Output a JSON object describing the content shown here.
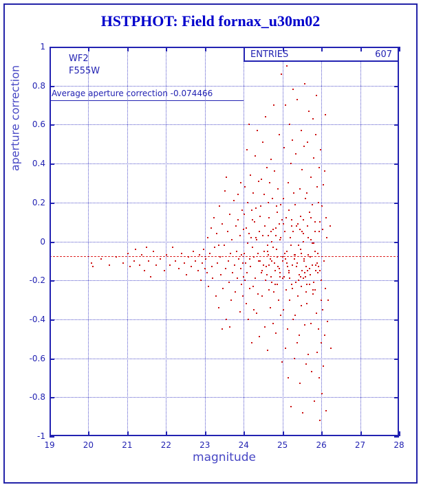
{
  "chart_data": {
    "type": "scatter",
    "title": "HSTPHOT: Field fornax_u30m02",
    "xlabel": "magnitude",
    "ylabel": "aperture correction",
    "xlim": [
      19,
      28
    ],
    "ylim": [
      -1,
      1
    ],
    "grid": true,
    "x_ticks": [
      19,
      20,
      21,
      22,
      23,
      24,
      25,
      26,
      27,
      28
    ],
    "x_tick_labels": [
      "19",
      "20",
      "21",
      "22",
      "23",
      "24",
      "25",
      "26",
      "27",
      "28"
    ],
    "y_ticks": [
      1,
      0.8,
      0.6,
      0.4,
      0.2,
      0,
      -0.2,
      -0.4,
      -0.6,
      -0.8,
      -1
    ],
    "y_tick_labels": [
      "1",
      "0.8",
      "0.6",
      "0.4",
      "0.2",
      "0",
      "-0.2",
      "-0.4",
      "-0.6",
      "-0.8",
      "-1"
    ],
    "stats": {
      "entries_label": "ENTRIES",
      "entries_value": "607"
    },
    "camera_label": "WF2",
    "filter_label": "F555W",
    "average_label": "Average aperture correction -0.074466",
    "average_value": -0.074466,
    "marker_color": "#cc1111",
    "frame_color": "#2222b2",
    "points": [
      [
        20.08,
        -0.11
      ],
      [
        20.12,
        -0.13
      ],
      [
        20.32,
        -0.09
      ],
      [
        20.55,
        -0.12
      ],
      [
        20.72,
        -0.08
      ],
      [
        20.9,
        -0.11
      ],
      [
        21.02,
        -0.06
      ],
      [
        21.08,
        -0.13
      ],
      [
        21.18,
        -0.1
      ],
      [
        21.22,
        -0.04
      ],
      [
        21.32,
        -0.12
      ],
      [
        21.38,
        -0.07
      ],
      [
        21.44,
        -0.15
      ],
      [
        21.5,
        -0.03
      ],
      [
        21.55,
        -0.1
      ],
      [
        21.6,
        -0.18
      ],
      [
        21.68,
        -0.05
      ],
      [
        21.75,
        -0.12
      ],
      [
        21.85,
        -0.09
      ],
      [
        21.95,
        -0.15
      ],
      [
        22.02,
        -0.07
      ],
      [
        22.1,
        -0.12
      ],
      [
        22.18,
        -0.03
      ],
      [
        22.25,
        -0.1
      ],
      [
        22.33,
        -0.14
      ],
      [
        22.4,
        -0.06
      ],
      [
        22.48,
        -0.11
      ],
      [
        22.52,
        -0.17
      ],
      [
        22.58,
        -0.08
      ],
      [
        22.65,
        -0.13
      ],
      [
        22.7,
        -0.05
      ],
      [
        22.75,
        -0.1
      ],
      [
        22.82,
        -0.15
      ],
      [
        22.87,
        -0.07
      ],
      [
        22.9,
        -0.2
      ],
      [
        22.94,
        -0.11
      ],
      [
        22.97,
        -0.04
      ],
      [
        23.0,
        -0.14
      ],
      [
        23.02,
        -0.09
      ],
      [
        23.05,
        -0.16
      ],
      [
        23.08,
        0.02
      ],
      [
        23.1,
        -0.23
      ],
      [
        23.13,
        -0.06
      ],
      [
        23.16,
        0.07
      ],
      [
        23.18,
        -0.13
      ],
      [
        23.2,
        -0.19
      ],
      [
        23.23,
        0.12
      ],
      [
        23.26,
        -0.03
      ],
      [
        23.28,
        -0.28
      ],
      [
        23.3,
        0.04
      ],
      [
        23.33,
        -0.11
      ],
      [
        23.36,
        -0.34
      ],
      [
        23.38,
        0.18
      ],
      [
        23.4,
        -0.08
      ],
      [
        23.42,
        -0.17
      ],
      [
        23.45,
        0.09
      ],
      [
        23.47,
        -0.24
      ],
      [
        23.5,
        -0.02
      ],
      [
        23.52,
        0.26
      ],
      [
        23.54,
        -0.14
      ],
      [
        23.56,
        -0.4
      ],
      [
        23.58,
        0.05
      ],
      [
        23.6,
        -0.1
      ],
      [
        23.62,
        -0.21
      ],
      [
        23.64,
        0.14
      ],
      [
        23.66,
        -0.06
      ],
      [
        23.68,
        -0.3
      ],
      [
        23.7,
        0.01
      ],
      [
        23.72,
        -0.16
      ],
      [
        23.74,
        0.21
      ],
      [
        23.76,
        -0.12
      ],
      [
        23.78,
        -0.26
      ],
      [
        23.8,
        0.08
      ],
      [
        23.82,
        -0.05
      ],
      [
        23.84,
        -0.19
      ],
      [
        23.86,
        0.11
      ],
      [
        23.88,
        -0.09
      ],
      [
        23.9,
        -0.36
      ],
      [
        23.91,
        0.03
      ],
      [
        23.92,
        -0.14
      ],
      [
        23.93,
        0.3
      ],
      [
        23.94,
        -0.22
      ],
      [
        23.95,
        -0.07
      ],
      [
        23.96,
        0.16
      ],
      [
        23.97,
        -0.11
      ],
      [
        23.98,
        -0.28
      ],
      [
        23.99,
        0.06
      ],
      [
        24.0,
        -0.18
      ],
      [
        23.44,
        -0.45
      ],
      [
        23.55,
        0.33
      ],
      [
        23.35,
        -0.02
      ],
      [
        23.65,
        -0.44
      ],
      [
        23.85,
        0.24
      ],
      [
        24.01,
        -0.06
      ],
      [
        24.02,
        0.14
      ],
      [
        24.03,
        -0.2
      ],
      [
        24.04,
        0.28
      ],
      [
        24.05,
        -0.11
      ],
      [
        24.06,
        -0.32
      ],
      [
        24.07,
        0.07
      ],
      [
        24.08,
        0.47
      ],
      [
        24.09,
        -0.16
      ],
      [
        24.1,
        -0.01
      ],
      [
        24.11,
        0.2
      ],
      [
        24.12,
        -0.4
      ],
      [
        24.13,
        0.04
      ],
      [
        24.14,
        0.6
      ],
      [
        24.15,
        -0.24
      ],
      [
        24.16,
        -0.09
      ],
      [
        24.17,
        0.34
      ],
      [
        24.18,
        -0.13
      ],
      [
        24.19,
        0.02
      ],
      [
        24.2,
        -0.52
      ],
      [
        24.21,
        0.16
      ],
      [
        24.22,
        -0.03
      ],
      [
        24.23,
        0.11
      ],
      [
        24.24,
        -0.23
      ],
      [
        24.25,
        0.25
      ],
      [
        24.26,
        -0.08
      ],
      [
        24.27,
        -0.35
      ],
      [
        24.28,
        0.1
      ],
      [
        24.29,
        0.44
      ],
      [
        24.3,
        -0.19
      ],
      [
        24.31,
        0.02
      ],
      [
        24.32,
        0.17
      ],
      [
        24.33,
        -0.37
      ],
      [
        24.34,
        0.01
      ],
      [
        24.35,
        0.57
      ],
      [
        24.36,
        -0.27
      ],
      [
        24.37,
        -0.06
      ],
      [
        24.38,
        0.31
      ],
      [
        24.39,
        -0.1
      ],
      [
        24.4,
        0.05
      ],
      [
        24.41,
        -0.49
      ],
      [
        24.42,
        0.13
      ],
      [
        24.43,
        -0.1
      ],
      [
        24.44,
        0.18
      ],
      [
        24.45,
        -0.16
      ],
      [
        24.46,
        0.32
      ],
      [
        24.47,
        -0.15
      ],
      [
        24.48,
        -0.28
      ],
      [
        24.49,
        0.03
      ],
      [
        24.5,
        0.51
      ],
      [
        24.51,
        -0.12
      ],
      [
        24.52,
        -0.05
      ],
      [
        24.53,
        0.24
      ],
      [
        24.54,
        -0.44
      ],
      [
        24.55,
        0.08
      ],
      [
        24.56,
        0.64
      ],
      [
        24.57,
        -0.2
      ],
      [
        24.58,
        -0.13
      ],
      [
        24.59,
        0.38
      ],
      [
        24.6,
        -0.17
      ],
      [
        24.61,
        -0.02
      ],
      [
        24.62,
        -0.56
      ],
      [
        24.63,
        0.2
      ],
      [
        24.64,
        -0.07
      ],
      [
        24.65,
        0.12
      ],
      [
        24.66,
        -0.25
      ],
      [
        24.67,
        0.3
      ],
      [
        24.68,
        -0.09
      ],
      [
        24.69,
        -0.34
      ],
      [
        24.7,
        0.05
      ],
      [
        24.71,
        0.42
      ],
      [
        24.72,
        -0.21
      ],
      [
        24.73,
        0.0
      ],
      [
        24.74,
        0.22
      ],
      [
        24.75,
        -0.42
      ],
      [
        24.76,
        0.06
      ],
      [
        24.77,
        0.7
      ],
      [
        24.78,
        -0.26
      ],
      [
        24.79,
        -0.11
      ],
      [
        24.8,
        0.36
      ],
      [
        24.81,
        -0.15
      ],
      [
        24.82,
        0.03
      ],
      [
        24.83,
        -0.47
      ],
      [
        24.84,
        0.18
      ],
      [
        24.85,
        -0.04
      ],
      [
        24.86,
        0.15
      ],
      [
        24.87,
        -0.22
      ],
      [
        24.88,
        0.27
      ],
      [
        24.89,
        -0.13
      ],
      [
        24.9,
        -0.3
      ],
      [
        24.91,
        0.09
      ],
      [
        24.92,
        0.55
      ],
      [
        24.93,
        -0.18
      ],
      [
        24.94,
        0.01
      ],
      [
        24.95,
        0.19
      ],
      [
        24.96,
        -0.38
      ],
      [
        24.97,
        0.86
      ],
      [
        24.98,
        -0.62
      ],
      [
        24.99,
        0.11
      ],
      [
        25.0,
        -0.08
      ],
      [
        25.01,
        -0.1
      ],
      [
        25.02,
        0.22
      ],
      [
        25.03,
        -0.35
      ],
      [
        25.04,
        0.48
      ],
      [
        25.05,
        -0.18
      ],
      [
        25.06,
        0.05
      ],
      [
        25.07,
        -0.55
      ],
      [
        25.08,
        0.7
      ],
      [
        25.09,
        -0.25
      ],
      [
        25.1,
        0.12
      ],
      [
        25.11,
        -0.05
      ],
      [
        25.12,
        0.9
      ],
      [
        25.13,
        -0.45
      ],
      [
        25.14,
        0.3
      ],
      [
        25.15,
        -0.7
      ],
      [
        25.16,
        0.16
      ],
      [
        25.17,
        -0.15
      ],
      [
        25.18,
        0.6
      ],
      [
        25.19,
        -0.3
      ],
      [
        25.2,
        0.02
      ],
      [
        25.21,
        0.4
      ],
      [
        25.22,
        -0.85
      ],
      [
        25.23,
        0.08
      ],
      [
        25.24,
        -0.22
      ],
      [
        25.25,
        0.52
      ],
      [
        25.26,
        -0.12
      ],
      [
        25.27,
        0.78
      ],
      [
        25.28,
        -0.4
      ],
      [
        25.29,
        0.25
      ],
      [
        25.3,
        -0.6
      ],
      [
        25.31,
        -0.07
      ],
      [
        25.32,
        0.19
      ],
      [
        25.33,
        -0.38
      ],
      [
        25.34,
        0.45
      ],
      [
        25.35,
        -0.21
      ],
      [
        25.36,
        0.08
      ],
      [
        25.37,
        -0.52
      ],
      [
        25.38,
        0.73
      ],
      [
        25.39,
        -0.28
      ],
      [
        25.4,
        0.09
      ],
      [
        25.41,
        -0.02
      ],
      [
        25.42,
        0.93
      ],
      [
        25.43,
        -0.48
      ],
      [
        25.44,
        0.27
      ],
      [
        25.45,
        -0.73
      ],
      [
        25.46,
        0.13
      ],
      [
        25.47,
        -0.18
      ],
      [
        25.48,
        0.57
      ],
      [
        25.49,
        -0.33
      ],
      [
        25.5,
        0.05
      ],
      [
        25.51,
        0.37
      ],
      [
        25.52,
        -0.88
      ],
      [
        25.53,
        0.11
      ],
      [
        25.54,
        -0.19
      ],
      [
        25.55,
        0.49
      ],
      [
        25.56,
        -0.09
      ],
      [
        25.57,
        0.81
      ],
      [
        25.58,
        -0.43
      ],
      [
        25.59,
        0.22
      ],
      [
        25.6,
        -0.63
      ],
      [
        25.61,
        -0.13
      ],
      [
        25.62,
        0.25
      ],
      [
        25.63,
        -0.32
      ],
      [
        25.64,
        0.51
      ],
      [
        25.65,
        -0.15
      ],
      [
        25.66,
        0.02
      ],
      [
        25.67,
        -0.58
      ],
      [
        25.68,
        0.67
      ],
      [
        25.69,
        -0.22
      ],
      [
        25.7,
        0.15
      ],
      [
        25.71,
        -0.08
      ],
      [
        25.72,
        0.95
      ],
      [
        25.73,
        -0.42
      ],
      [
        25.74,
        0.33
      ],
      [
        25.75,
        -0.67
      ],
      [
        25.76,
        0.19
      ],
      [
        25.77,
        -0.12
      ],
      [
        25.78,
        0.63
      ],
      [
        25.79,
        -0.27
      ],
      [
        25.8,
        -0.01
      ],
      [
        25.81,
        0.43
      ],
      [
        25.82,
        -0.82
      ],
      [
        25.83,
        0.05
      ],
      [
        25.84,
        -0.25
      ],
      [
        25.85,
        0.55
      ],
      [
        25.86,
        -0.15
      ],
      [
        25.87,
        0.75
      ],
      [
        25.88,
        -0.37
      ],
      [
        25.89,
        0.28
      ],
      [
        25.9,
        -0.57
      ],
      [
        25.91,
        -0.16
      ],
      [
        25.92,
        0.2
      ],
      [
        25.93,
        -0.45
      ],
      [
        25.94,
        0.38
      ],
      [
        25.95,
        -0.7
      ],
      [
        25.96,
        0.1
      ],
      [
        25.97,
        -0.92
      ],
      [
        25.98,
        0.47
      ],
      [
        25.99,
        -0.3
      ],
      [
        26.0,
        -0.52
      ],
      [
        26.01,
        0.18
      ],
      [
        26.02,
        -0.78
      ],
      [
        26.03,
        0.06
      ],
      [
        26.04,
        -0.35
      ],
      [
        26.05,
        0.29
      ],
      [
        26.06,
        -0.64
      ],
      [
        26.07,
        -0.1
      ],
      [
        26.08,
        0.36
      ],
      [
        26.09,
        -0.48
      ],
      [
        26.1,
        0.65
      ],
      [
        26.11,
        -0.24
      ],
      [
        26.12,
        0.12
      ],
      [
        26.13,
        -0.87
      ],
      [
        26.14,
        0.02
      ],
      [
        26.15,
        -0.41
      ],
      [
        24.61,
        -0.05
      ],
      [
        24.66,
        -0.12
      ],
      [
        24.71,
        -0.18
      ],
      [
        24.76,
        -0.03
      ],
      [
        24.81,
        -0.22
      ],
      [
        24.86,
        -0.08
      ],
      [
        24.91,
        -0.14
      ],
      [
        24.96,
        0.02
      ],
      [
        25.01,
        -0.19
      ],
      [
        25.06,
        -0.06
      ],
      [
        25.11,
        -0.11
      ],
      [
        25.16,
        -0.16
      ],
      [
        25.21,
        -0.02
      ],
      [
        25.26,
        -0.24
      ],
      [
        25.31,
        -0.09
      ],
      [
        25.36,
        -0.13
      ],
      [
        25.41,
        -0.2
      ],
      [
        25.46,
        -0.04
      ],
      [
        25.51,
        -0.15
      ],
      [
        25.56,
        -0.1
      ],
      [
        25.61,
        -0.26
      ],
      [
        25.66,
        -0.07
      ],
      [
        25.71,
        -0.17
      ],
      [
        25.76,
        -0.01
      ],
      [
        25.81,
        -0.21
      ],
      [
        25.86,
        -0.12
      ],
      [
        25.91,
        -0.06
      ],
      [
        25.96,
        -0.15
      ],
      [
        25.44,
        0.06
      ],
      [
        25.49,
        -0.23
      ],
      [
        25.54,
        0.04
      ],
      [
        25.59,
        -0.18
      ],
      [
        25.64,
        0.08
      ],
      [
        25.69,
        -0.14
      ],
      [
        25.74,
        0.01
      ],
      [
        25.79,
        -0.25
      ],
      [
        25.84,
        0.1
      ],
      [
        25.89,
        -0.11
      ],
      [
        25.94,
        0.05
      ],
      [
        25.99,
        -0.2
      ],
      [
        24.63,
        0.03
      ],
      [
        24.73,
        -0.1
      ],
      [
        24.83,
        0.07
      ],
      [
        24.93,
        -0.16
      ],
      [
        25.03,
        0.09
      ],
      [
        25.13,
        -0.13
      ],
      [
        25.23,
        0.11
      ],
      [
        25.33,
        -0.07
      ],
      [
        25.43,
        -0.17
      ],
      [
        25.53,
        0.0
      ],
      [
        25.63,
        -0.22
      ],
      [
        25.73,
        0.12
      ],
      [
        25.83,
        -0.05
      ],
      [
        25.93,
        -0.13
      ],
      [
        25.08,
        -0.09
      ],
      [
        25.18,
        -0.19
      ],
      [
        25.28,
        0.05
      ],
      [
        25.38,
        -0.11
      ],
      [
        25.48,
        -0.06
      ],
      [
        25.58,
        -0.16
      ],
      [
        26.18,
        -0.3
      ],
      [
        26.22,
        0.08
      ],
      [
        26.25,
        -0.55
      ]
    ]
  }
}
